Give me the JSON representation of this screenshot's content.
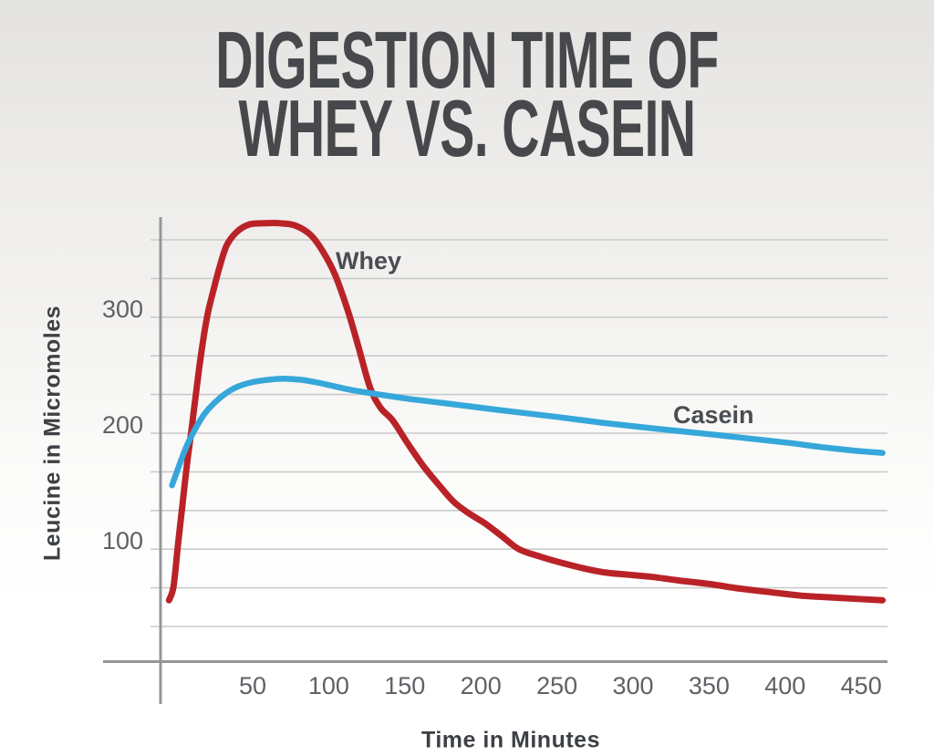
{
  "title": {
    "line1": "DIGESTION TIME OF",
    "line2": "WHEY VS. CASEIN"
  },
  "chart_data": {
    "type": "line",
    "title": "Digestion Time of Whey vs. Casein",
    "xlabel": "Time in Minutes",
    "ylabel": "Leucine in Micromoles",
    "x_ticks": [
      50,
      100,
      150,
      200,
      250,
      300,
      350,
      400,
      450
    ],
    "y_ticks": [
      100,
      200,
      300
    ],
    "xlim": [
      -10,
      467
    ],
    "ylim": [
      0,
      390
    ],
    "grid": "horizontal minor gridlines only",
    "y_grid_step": 33.333,
    "y_grid_count": 11,
    "legend_position": "inline labels next to curves",
    "series": [
      {
        "name": "Whey",
        "color": "#b92328",
        "points": [
          [
            -5,
            56
          ],
          [
            -2,
            68
          ],
          [
            1,
            105
          ],
          [
            4,
            140
          ],
          [
            7,
            175
          ],
          [
            10,
            205
          ],
          [
            13,
            237
          ],
          [
            16,
            267
          ],
          [
            20,
            300
          ],
          [
            24,
            322
          ],
          [
            28,
            342
          ],
          [
            33,
            362
          ],
          [
            40,
            374
          ],
          [
            48,
            380
          ],
          [
            58,
            381
          ],
          [
            68,
            381
          ],
          [
            78,
            379
          ],
          [
            88,
            371
          ],
          [
            96,
            357
          ],
          [
            104,
            337
          ],
          [
            112,
            308
          ],
          [
            119,
            277
          ],
          [
            127,
            240
          ],
          [
            134,
            222
          ],
          [
            142,
            211
          ],
          [
            152,
            191
          ],
          [
            162,
            172
          ],
          [
            172,
            156
          ],
          [
            182,
            141
          ],
          [
            192,
            131
          ],
          [
            203,
            122
          ],
          [
            214,
            111
          ],
          [
            225,
            100
          ],
          [
            238,
            94
          ],
          [
            251,
            89
          ],
          [
            266,
            84
          ],
          [
            281,
            80
          ],
          [
            297,
            78
          ],
          [
            313,
            76
          ],
          [
            330,
            73
          ],
          [
            350,
            70
          ],
          [
            370,
            66
          ],
          [
            390,
            63
          ],
          [
            410,
            60
          ],
          [
            435,
            58
          ],
          [
            464,
            56
          ]
        ]
      },
      {
        "name": "Casein",
        "color": "#36a7da",
        "points": [
          [
            -3,
            155
          ],
          [
            0,
            166
          ],
          [
            6,
            187
          ],
          [
            12,
            203
          ],
          [
            18,
            216
          ],
          [
            24,
            225
          ],
          [
            32,
            234
          ],
          [
            40,
            240
          ],
          [
            50,
            244
          ],
          [
            60,
            246
          ],
          [
            70,
            247
          ],
          [
            82,
            246
          ],
          [
            95,
            243
          ],
          [
            112,
            238
          ],
          [
            130,
            234
          ],
          [
            150,
            230
          ],
          [
            175,
            226
          ],
          [
            212,
            220
          ],
          [
            250,
            214
          ],
          [
            280,
            209
          ],
          [
            314,
            204
          ],
          [
            358,
            198
          ],
          [
            400,
            192
          ],
          [
            424,
            188
          ],
          [
            445,
            185
          ],
          [
            464,
            183
          ]
        ]
      }
    ],
    "annotations": [
      {
        "text": "Whey",
        "series": "Whey"
      },
      {
        "text": "Casein",
        "series": "Casein"
      }
    ]
  },
  "colors": {
    "whey": "#b92328",
    "casein": "#36a7da",
    "title_text": "#46484c",
    "axis_line": "#94979a",
    "gridline": "#cbcbca",
    "tick_text": "#5e6266",
    "axis_title_text": "#3d4145"
  }
}
